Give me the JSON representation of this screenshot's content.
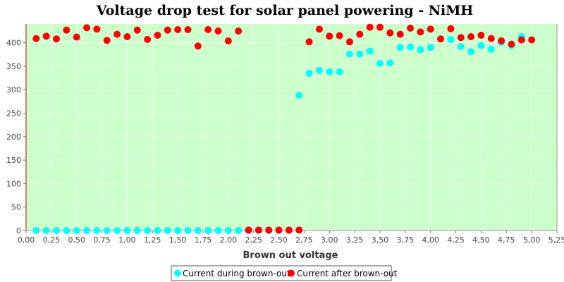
{
  "chart_data": {
    "type": "scatter",
    "title": "Voltage drop test for solar panel powering -  NiMH",
    "xlabel": "Brown out voltage",
    "ylabel": "",
    "xlim": [
      0.0,
      5.25
    ],
    "ylim": [
      0,
      440
    ],
    "x_ticks": [
      0,
      0.25,
      0.5,
      0.75,
      1.0,
      1.25,
      1.5,
      1.75,
      2.0,
      2.25,
      2.5,
      2.75,
      3.0,
      3.25,
      3.5,
      3.75,
      4.0,
      4.25,
      4.5,
      4.75,
      5.0,
      5.25
    ],
    "x_tick_labels": [
      "0,00",
      "0,25",
      "0,50",
      "0,75",
      "1,00",
      "1,25",
      "1,50",
      "1,75",
      "2,00",
      "2,25",
      "2,50",
      "2,75",
      "3,00",
      "3,25",
      "3,50",
      "3,75",
      "4,00",
      "4,25",
      "4,50",
      "4,75",
      "5,00",
      "5,25"
    ],
    "y_ticks": [
      0,
      50,
      100,
      150,
      200,
      250,
      300,
      350,
      400
    ],
    "y_tick_labels": [
      "0",
      "50",
      "100",
      "150",
      "200",
      "250",
      "300",
      "350",
      "400"
    ],
    "grid": true,
    "legend_position": "bottom",
    "colors": {
      "plot_background": "#ccffcc",
      "grid": "#e8ffe8",
      "axis": "#cc0000",
      "series_1": "#00ffff",
      "series_2": "#ff0000"
    },
    "series": [
      {
        "name": "Current during brown-out",
        "color": "#00ffff",
        "points": [
          [
            0.1,
            0
          ],
          [
            0.2,
            0
          ],
          [
            0.3,
            0
          ],
          [
            0.4,
            0
          ],
          [
            0.5,
            0
          ],
          [
            0.6,
            0
          ],
          [
            0.7,
            0
          ],
          [
            0.8,
            0
          ],
          [
            0.9,
            0
          ],
          [
            1.0,
            0
          ],
          [
            1.1,
            0
          ],
          [
            1.2,
            0
          ],
          [
            1.3,
            0
          ],
          [
            1.4,
            0
          ],
          [
            1.5,
            0
          ],
          [
            1.6,
            0
          ],
          [
            1.7,
            0
          ],
          [
            1.8,
            0
          ],
          [
            1.9,
            0
          ],
          [
            2.0,
            0
          ],
          [
            2.1,
            0
          ],
          [
            2.2,
            0
          ],
          [
            2.3,
            0
          ],
          [
            2.4,
            0
          ],
          [
            2.5,
            0
          ],
          [
            2.6,
            0
          ],
          [
            2.7,
            288
          ],
          [
            2.8,
            335
          ],
          [
            2.9,
            341
          ],
          [
            3.0,
            338
          ],
          [
            3.1,
            338
          ],
          [
            3.2,
            376
          ],
          [
            3.3,
            376
          ],
          [
            3.4,
            382
          ],
          [
            3.5,
            356
          ],
          [
            3.6,
            357
          ],
          [
            3.7,
            390
          ],
          [
            3.8,
            391
          ],
          [
            3.9,
            385
          ],
          [
            4.0,
            390
          ],
          [
            4.1,
            408
          ],
          [
            4.2,
            407
          ],
          [
            4.3,
            392
          ],
          [
            4.4,
            381
          ],
          [
            4.5,
            394
          ],
          [
            4.6,
            386
          ],
          [
            4.7,
            401
          ],
          [
            4.8,
            394
          ],
          [
            4.9,
            413
          ],
          [
            5.0,
            406
          ]
        ]
      },
      {
        "name": "Current after brown-out",
        "color": "#ff0000",
        "points": [
          [
            0.1,
            409
          ],
          [
            0.2,
            414
          ],
          [
            0.3,
            408
          ],
          [
            0.4,
            427
          ],
          [
            0.5,
            412
          ],
          [
            0.6,
            432
          ],
          [
            0.7,
            429
          ],
          [
            0.8,
            405
          ],
          [
            0.9,
            418
          ],
          [
            1.0,
            413
          ],
          [
            1.1,
            427
          ],
          [
            1.2,
            407
          ],
          [
            1.3,
            416
          ],
          [
            1.4,
            427
          ],
          [
            1.5,
            428
          ],
          [
            1.6,
            428
          ],
          [
            1.7,
            393
          ],
          [
            1.8,
            428
          ],
          [
            1.9,
            425
          ],
          [
            2.0,
            404
          ],
          [
            2.1,
            425
          ],
          [
            2.2,
            1
          ],
          [
            2.3,
            1
          ],
          [
            2.4,
            1
          ],
          [
            2.5,
            1
          ],
          [
            2.6,
            1
          ],
          [
            2.7,
            1
          ],
          [
            2.8,
            402
          ],
          [
            2.9,
            429
          ],
          [
            3.0,
            414
          ],
          [
            3.1,
            415
          ],
          [
            3.2,
            402
          ],
          [
            3.3,
            418
          ],
          [
            3.4,
            433
          ],
          [
            3.5,
            433
          ],
          [
            3.6,
            421
          ],
          [
            3.7,
            418
          ],
          [
            3.8,
            431
          ],
          [
            3.9,
            423
          ],
          [
            4.0,
            429
          ],
          [
            4.1,
            408
          ],
          [
            4.2,
            430
          ],
          [
            4.3,
            411
          ],
          [
            4.4,
            413
          ],
          [
            4.5,
            416
          ],
          [
            4.6,
            409
          ],
          [
            4.7,
            404
          ],
          [
            4.8,
            397
          ],
          [
            4.9,
            406
          ],
          [
            5.0,
            406
          ]
        ]
      }
    ]
  }
}
